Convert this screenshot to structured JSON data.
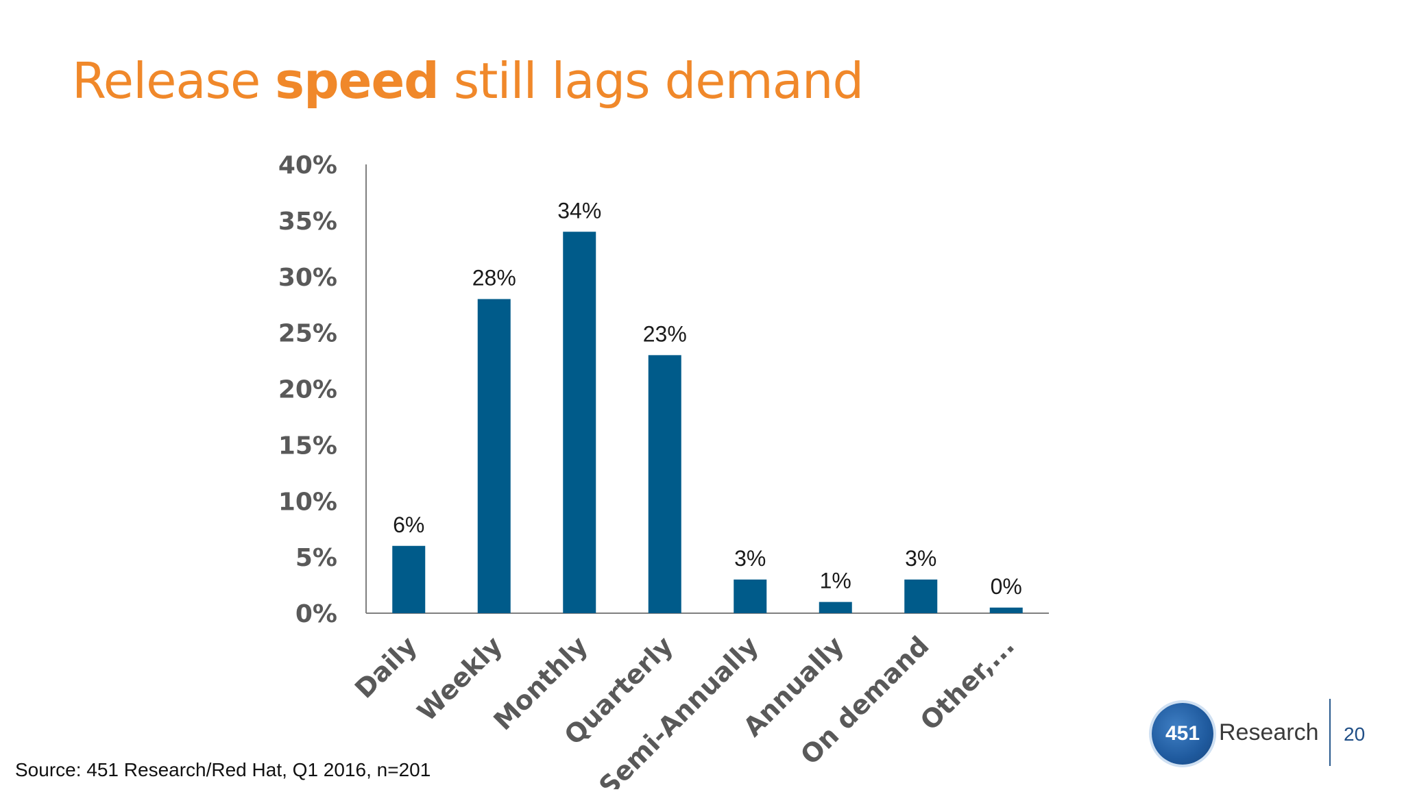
{
  "slide": {
    "title_pre": "Release ",
    "title_bold": "speed",
    "title_post": " still lags demand",
    "source": "Source: 451 Research/Red Hat, Q1 2016, n=201",
    "page_number": "20",
    "logo_number": "451",
    "logo_word": "Research"
  },
  "colors": {
    "bar": "#005b8a",
    "title": "#f0882a",
    "axis": "#7f7f7f"
  },
  "chart_data": {
    "type": "bar",
    "categories": [
      "Daily",
      "Weekly",
      "Monthly",
      "Quarterly",
      "Semi-Annually",
      "Annually",
      "On demand",
      "Other,..."
    ],
    "values": [
      6,
      28,
      34,
      23,
      3,
      1,
      3,
      0.5
    ],
    "data_labels": [
      "6%",
      "28%",
      "34%",
      "23%",
      "3%",
      "1%",
      "3%",
      "0%"
    ],
    "y_ticks": [
      "0%",
      "5%",
      "10%",
      "15%",
      "20%",
      "25%",
      "30%",
      "35%",
      "40%"
    ],
    "ylim": [
      0,
      40
    ],
    "title": "",
    "xlabel": "",
    "ylabel": "",
    "grid": false,
    "legend": "none"
  }
}
